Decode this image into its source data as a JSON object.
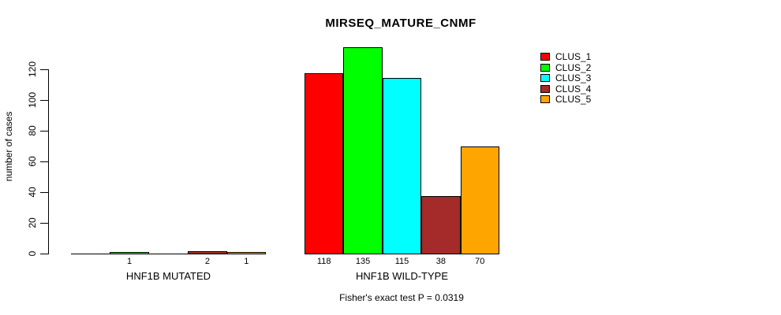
{
  "chart_data": {
    "type": "bar",
    "title": "MIRSEQ_MATURE_CNMF",
    "ylabel": "number of cases",
    "ylim": [
      0,
      135
    ],
    "yticks": [
      0,
      20,
      40,
      60,
      80,
      100,
      120
    ],
    "grid": false,
    "legend_position": "top-right",
    "series_labels": [
      "CLUS_1",
      "CLUS_2",
      "CLUS_3",
      "CLUS_4",
      "CLUS_5"
    ],
    "colors": [
      "#FF0000",
      "#00FF00",
      "#00FFFF",
      "#A52A2A",
      "#FFA500"
    ],
    "groups": [
      {
        "label": "HNF1B MUTATED",
        "values": [
          0,
          1,
          0,
          2,
          1
        ]
      },
      {
        "label": "HNF1B WILD-TYPE",
        "values": [
          118,
          135,
          115,
          38,
          70
        ]
      }
    ],
    "bar_value_labels": [
      [
        "",
        "1",
        "",
        "2",
        "1"
      ],
      [
        "118",
        "135",
        "115",
        "38",
        "70"
      ]
    ],
    "annotation": "Fisher's exact test P = 0.0319"
  }
}
